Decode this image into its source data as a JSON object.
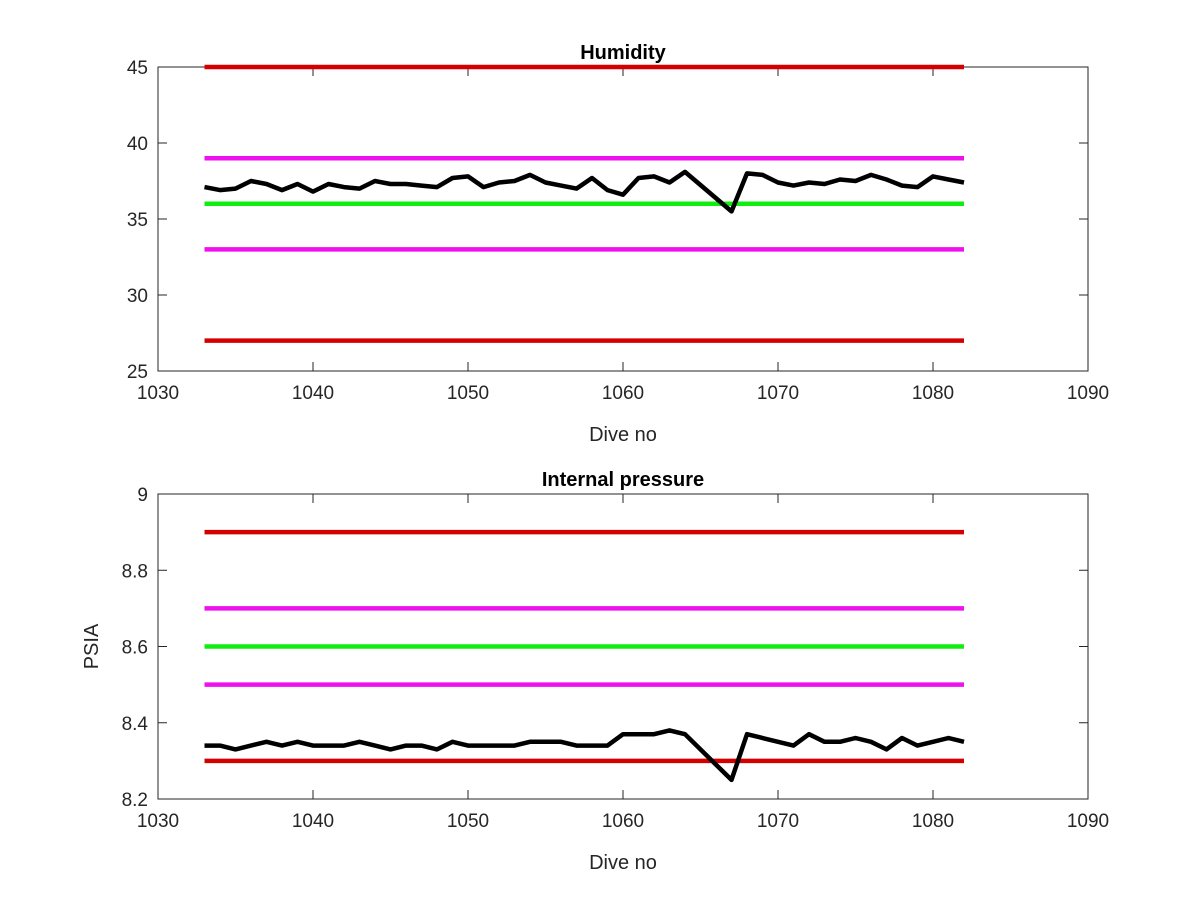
{
  "chart_data": [
    {
      "type": "line",
      "title": "Humidity",
      "xlabel": "Dive no",
      "ylabel": "",
      "xlim": [
        1030,
        1090
      ],
      "ylim": [
        25,
        45
      ],
      "xticks": [
        "1030",
        "1040",
        "1050",
        "1060",
        "1070",
        "1080",
        "1090"
      ],
      "yticks": [
        "25",
        "30",
        "35",
        "40",
        "45"
      ],
      "grid": false,
      "series": [
        {
          "style": "hline",
          "color": "#d40000",
          "x": [
            1033,
            1082
          ],
          "y": 45
        },
        {
          "style": "hline",
          "color": "#ee10ee",
          "x": [
            1033,
            1082
          ],
          "y": 39
        },
        {
          "style": "hline",
          "color": "#10ee10",
          "x": [
            1033,
            1082
          ],
          "y": 36
        },
        {
          "style": "hline",
          "color": "#ee10ee",
          "x": [
            1033,
            1082
          ],
          "y": 33
        },
        {
          "style": "hline",
          "color": "#d40000",
          "x": [
            1033,
            1082
          ],
          "y": 27
        },
        {
          "style": "line",
          "color": "#000000",
          "x": [
            1033,
            1034,
            1035,
            1036,
            1037,
            1038,
            1039,
            1040,
            1041,
            1042,
            1043,
            1044,
            1045,
            1046,
            1047,
            1048,
            1049,
            1050,
            1051,
            1052,
            1053,
            1054,
            1055,
            1056,
            1057,
            1058,
            1059,
            1060,
            1061,
            1062,
            1063,
            1064,
            1067,
            1068,
            1069,
            1070,
            1071,
            1072,
            1073,
            1074,
            1075,
            1076,
            1077,
            1078,
            1079,
            1080,
            1081,
            1082
          ],
          "y": [
            37.1,
            36.9,
            37.0,
            37.5,
            37.3,
            36.9,
            37.3,
            36.8,
            37.3,
            37.1,
            37.0,
            37.5,
            37.3,
            37.3,
            37.2,
            37.1,
            37.7,
            37.8,
            37.1,
            37.4,
            37.5,
            37.9,
            37.4,
            37.2,
            37.0,
            37.7,
            36.9,
            36.6,
            37.7,
            37.8,
            37.4,
            38.1,
            35.5,
            38.0,
            37.9,
            37.4,
            37.2,
            37.4,
            37.3,
            37.6,
            37.5,
            37.9,
            37.6,
            37.2,
            37.1,
            37.8,
            37.6,
            37.4
          ]
        }
      ]
    },
    {
      "type": "line",
      "title": "Internal pressure",
      "xlabel": "Dive no",
      "ylabel": "PSIA",
      "xlim": [
        1030,
        1090
      ],
      "ylim": [
        8.2,
        9.0
      ],
      "xticks": [
        "1030",
        "1040",
        "1050",
        "1060",
        "1070",
        "1080",
        "1090"
      ],
      "yticks": [
        "8.2",
        "8.4",
        "8.6",
        "8.8",
        "9"
      ],
      "grid": false,
      "series": [
        {
          "style": "hline",
          "color": "#d40000",
          "x": [
            1033,
            1082
          ],
          "y": 8.9
        },
        {
          "style": "hline",
          "color": "#ee10ee",
          "x": [
            1033,
            1082
          ],
          "y": 8.7
        },
        {
          "style": "hline",
          "color": "#10ee10",
          "x": [
            1033,
            1082
          ],
          "y": 8.6
        },
        {
          "style": "hline",
          "color": "#ee10ee",
          "x": [
            1033,
            1082
          ],
          "y": 8.5
        },
        {
          "style": "hline",
          "color": "#d40000",
          "x": [
            1033,
            1082
          ],
          "y": 8.3
        },
        {
          "style": "line",
          "color": "#000000",
          "x": [
            1033,
            1034,
            1035,
            1036,
            1037,
            1038,
            1039,
            1040,
            1041,
            1042,
            1043,
            1044,
            1045,
            1046,
            1047,
            1048,
            1049,
            1050,
            1051,
            1052,
            1053,
            1054,
            1055,
            1056,
            1057,
            1058,
            1059,
            1060,
            1061,
            1062,
            1063,
            1064,
            1067,
            1068,
            1069,
            1070,
            1071,
            1072,
            1073,
            1074,
            1075,
            1076,
            1077,
            1078,
            1079,
            1080,
            1081,
            1082
          ],
          "y": [
            8.34,
            8.34,
            8.33,
            8.34,
            8.35,
            8.34,
            8.35,
            8.34,
            8.34,
            8.34,
            8.35,
            8.34,
            8.33,
            8.34,
            8.34,
            8.33,
            8.35,
            8.34,
            8.34,
            8.34,
            8.34,
            8.35,
            8.35,
            8.35,
            8.34,
            8.34,
            8.34,
            8.37,
            8.37,
            8.37,
            8.38,
            8.37,
            8.25,
            8.37,
            8.36,
            8.35,
            8.34,
            8.37,
            8.35,
            8.35,
            8.36,
            8.35,
            8.33,
            8.36,
            8.34,
            8.35,
            8.36,
            8.35
          ]
        }
      ]
    }
  ]
}
